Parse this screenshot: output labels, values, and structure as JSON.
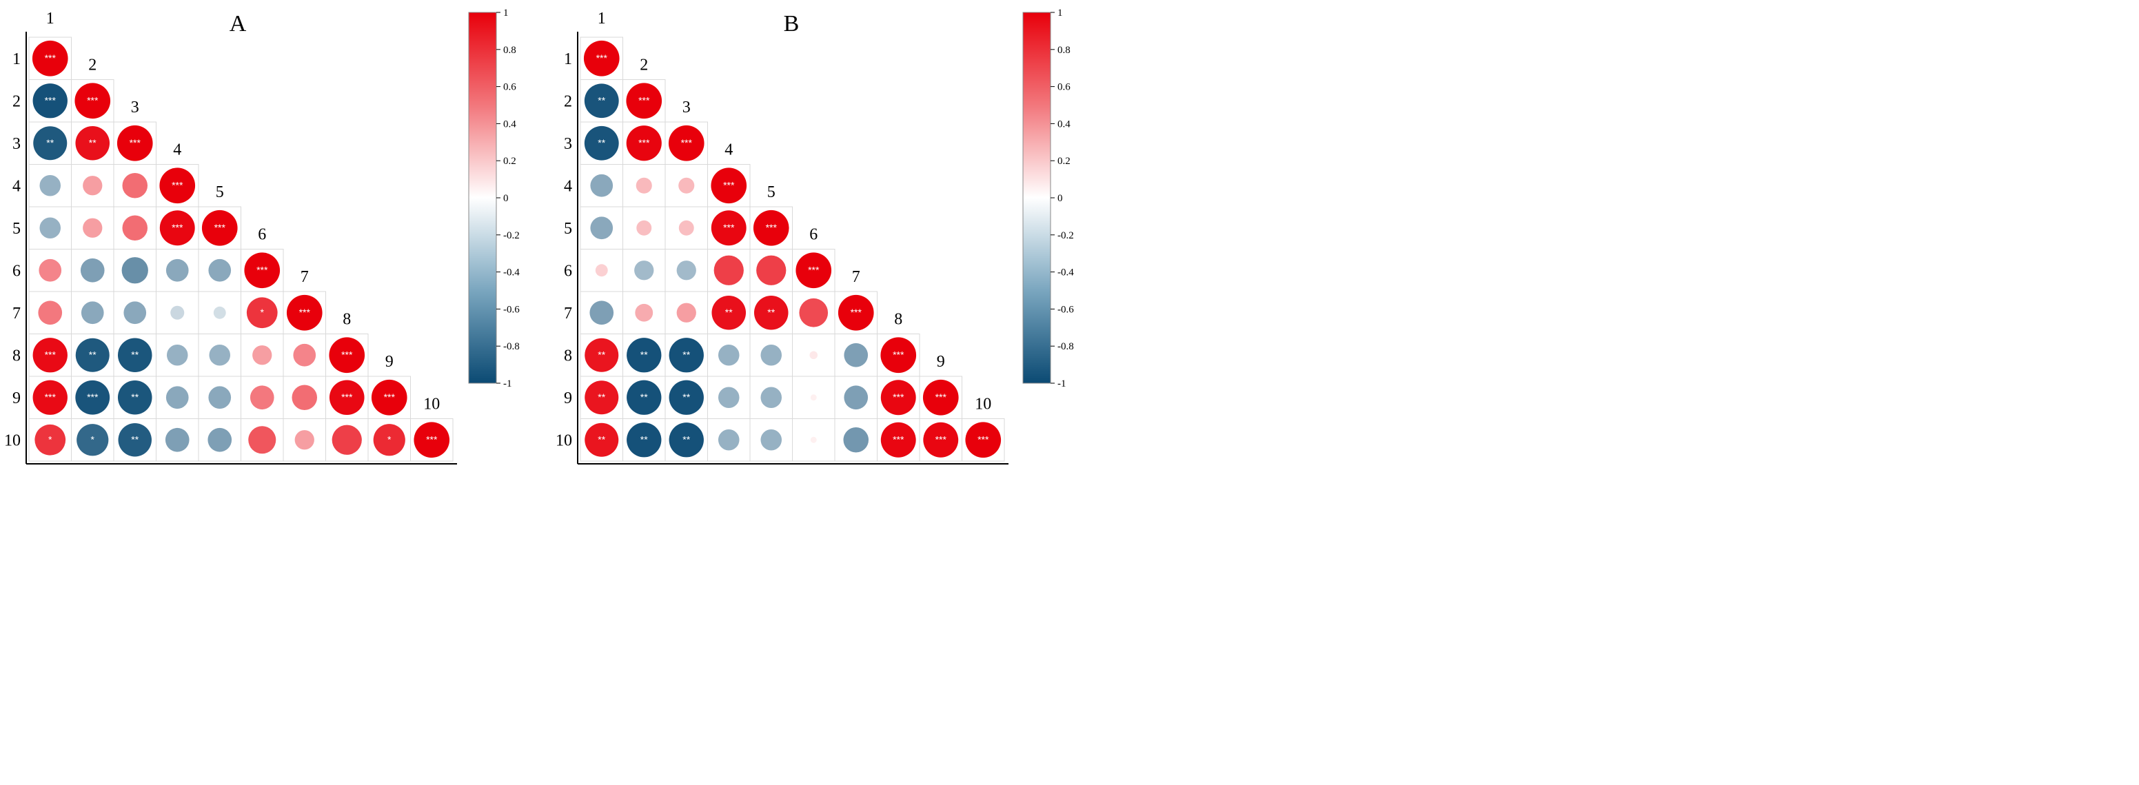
{
  "figure": {
    "background": "#ffffff",
    "cell_border_color": "#d9d9d9"
  },
  "colors": {
    "positive": "#e8000b",
    "neutral": "#ffffff",
    "negative": "#0b4a73"
  },
  "chart_data": [
    {
      "type": "heatmap",
      "subtype": "correlation-circles-lower-triangle",
      "title": "A",
      "variables": [
        "1",
        "2",
        "3",
        "4",
        "5",
        "6",
        "7",
        "8",
        "9",
        "10"
      ],
      "size_encodes": "absolute correlation",
      "color_encodes": "correlation",
      "colorbar": {
        "range": [
          -1,
          1
        ],
        "ticks": [
          1,
          0.8,
          0.6,
          0.4,
          0.2,
          0,
          -0.2,
          -0.4,
          -0.6,
          -0.8,
          -1
        ],
        "tick_labels": [
          "1",
          "0.8",
          "0.6",
          "0.4",
          "0.2",
          "0",
          "-0.2",
          "-0.4",
          "-0.6",
          "-0.8",
          "-1"
        ],
        "position": "right"
      },
      "matrix": [
        [
          1
        ],
        [
          -0.95,
          1
        ],
        [
          -0.9,
          0.92,
          1
        ],
        [
          -0.35,
          0.3,
          0.5,
          1
        ],
        [
          -0.35,
          0.3,
          0.5,
          0.97,
          1
        ],
        [
          0.4,
          -0.45,
          -0.55,
          -0.4,
          -0.4,
          1
        ],
        [
          0.45,
          -0.4,
          -0.4,
          -0.15,
          -0.12,
          0.75,
          1
        ],
        [
          0.95,
          -0.9,
          -0.92,
          -0.35,
          -0.35,
          0.3,
          0.4,
          1
        ],
        [
          0.95,
          -0.93,
          -0.92,
          -0.4,
          -0.4,
          0.45,
          0.5,
          0.96,
          1
        ],
        [
          0.75,
          -0.8,
          -0.88,
          -0.45,
          -0.45,
          0.6,
          0.3,
          0.7,
          0.8,
          1
        ]
      ],
      "stars": [
        [
          "***"
        ],
        [
          "***",
          "***"
        ],
        [
          "**",
          "**",
          "***"
        ],
        [
          "",
          "",
          "",
          "***"
        ],
        [
          "",
          "",
          "",
          "***",
          "***"
        ],
        [
          "",
          "",
          "",
          "",
          "",
          "***"
        ],
        [
          "",
          "",
          "",
          "",
          "",
          "*",
          "***"
        ],
        [
          "***",
          "**",
          "**",
          "",
          "",
          "",
          "",
          "***"
        ],
        [
          "***",
          "***",
          "**",
          "",
          "",
          "",
          "",
          "***",
          "***"
        ],
        [
          "*",
          "*",
          "**",
          "",
          "",
          "",
          "",
          "",
          "*",
          "***"
        ]
      ]
    },
    {
      "type": "heatmap",
      "subtype": "correlation-circles-lower-triangle",
      "title": "B",
      "variables": [
        "1",
        "2",
        "3",
        "4",
        "5",
        "6",
        "7",
        "8",
        "9",
        "10"
      ],
      "size_encodes": "absolute correlation",
      "color_encodes": "correlation",
      "colorbar": {
        "range": [
          -1,
          1
        ],
        "ticks": [
          1,
          0.8,
          0.6,
          0.4,
          0.2,
          0,
          -0.2,
          -0.4,
          -0.6,
          -0.8,
          -1
        ],
        "tick_labels": [
          "1",
          "0.8",
          "0.6",
          "0.4",
          "0.2",
          "0",
          "-0.2",
          "-0.4",
          "-0.6",
          "-0.8",
          "-1"
        ],
        "position": "right"
      },
      "matrix": [
        [
          1
        ],
        [
          -0.93,
          1
        ],
        [
          -0.93,
          0.98,
          1
        ],
        [
          -0.4,
          0.2,
          0.2,
          1
        ],
        [
          -0.4,
          0.18,
          0.18,
          0.97,
          1
        ],
        [
          0.12,
          -0.3,
          -0.3,
          0.7,
          0.7,
          1
        ],
        [
          -0.45,
          0.25,
          0.3,
          0.92,
          0.92,
          0.65,
          1
        ],
        [
          0.9,
          -0.95,
          -0.95,
          -0.35,
          -0.35,
          0.05,
          -0.45,
          1
        ],
        [
          0.9,
          -0.95,
          -0.95,
          -0.35,
          -0.35,
          0.03,
          -0.45,
          0.97,
          1
        ],
        [
          0.9,
          -0.95,
          -0.95,
          -0.35,
          -0.35,
          0.03,
          -0.5,
          0.97,
          0.97,
          1
        ]
      ],
      "stars": [
        [
          "***"
        ],
        [
          "**",
          "***"
        ],
        [
          "**",
          "***",
          "***"
        ],
        [
          "",
          "",
          "",
          "***"
        ],
        [
          "",
          "",
          "",
          "***",
          "***"
        ],
        [
          "",
          "",
          "",
          "",
          "",
          "***"
        ],
        [
          "",
          "",
          "",
          "**",
          "**",
          "",
          "***"
        ],
        [
          "**",
          "**",
          "**",
          "",
          "",
          "",
          "",
          "***"
        ],
        [
          "**",
          "**",
          "**",
          "",
          "",
          "",
          "",
          "***",
          "***"
        ],
        [
          "**",
          "**",
          "**",
          "",
          "",
          "",
          "",
          "***",
          "***",
          "***"
        ]
      ]
    }
  ]
}
